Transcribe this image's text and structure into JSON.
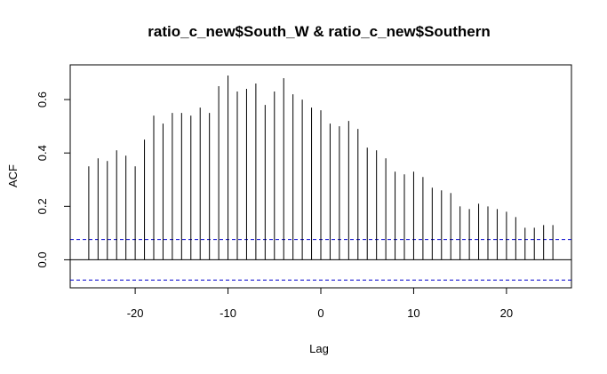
{
  "chart_data": {
    "type": "bar",
    "title": "ratio_c_new$South_W & ratio_c_new$Southern",
    "xlabel": "Lag",
    "ylabel": "ACF",
    "xlim": [
      -27,
      27
    ],
    "ylim": [
      -0.105,
      0.73
    ],
    "xticks": [
      -20,
      -10,
      0,
      10,
      20
    ],
    "xtick_labels": [
      "-20",
      "-10",
      "0",
      "10",
      "20"
    ],
    "yticks": [
      0.0,
      0.2,
      0.4,
      0.6
    ],
    "ytick_labels": [
      "0.0",
      "0.2",
      "0.4",
      "0.6"
    ],
    "x": [
      -25,
      -24,
      -23,
      -22,
      -21,
      -20,
      -19,
      -18,
      -17,
      -16,
      -15,
      -14,
      -13,
      -12,
      -11,
      -10,
      -9,
      -8,
      -7,
      -6,
      -5,
      -4,
      -3,
      -2,
      -1,
      0,
      1,
      2,
      3,
      4,
      5,
      6,
      7,
      8,
      9,
      10,
      11,
      12,
      13,
      14,
      15,
      16,
      17,
      18,
      19,
      20,
      21,
      22,
      23,
      24,
      25
    ],
    "values": [
      0.35,
      0.38,
      0.37,
      0.41,
      0.39,
      0.35,
      0.45,
      0.54,
      0.51,
      0.55,
      0.55,
      0.54,
      0.57,
      0.55,
      0.65,
      0.69,
      0.63,
      0.64,
      0.66,
      0.58,
      0.63,
      0.68,
      0.62,
      0.6,
      0.57,
      0.56,
      0.51,
      0.5,
      0.52,
      0.49,
      0.42,
      0.41,
      0.38,
      0.33,
      0.32,
      0.33,
      0.31,
      0.27,
      0.26,
      0.25,
      0.2,
      0.19,
      0.21,
      0.2,
      0.19,
      0.18,
      0.16,
      0.12,
      0.12,
      0.13,
      0.13
    ],
    "confidence_limit": 0.076,
    "zero_line": 0,
    "colors": {
      "bars": "#000000",
      "confidence": "#0000CD",
      "axes": "#000000"
    }
  }
}
